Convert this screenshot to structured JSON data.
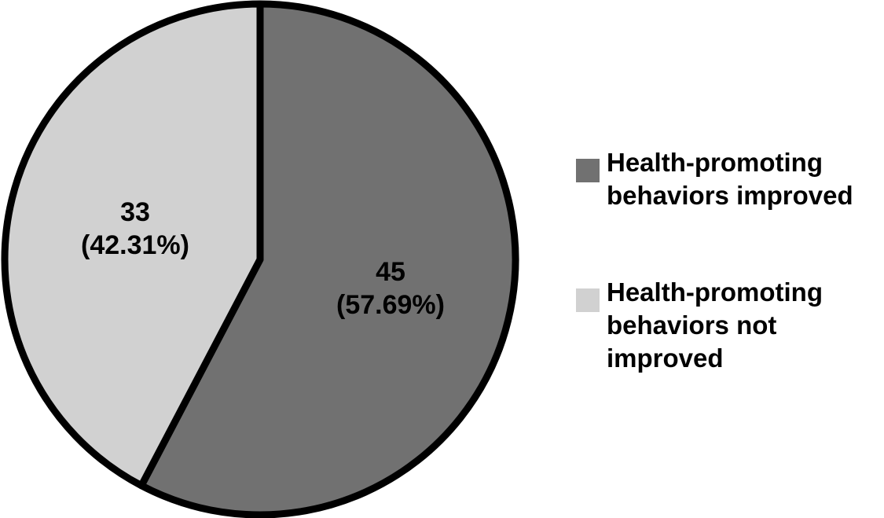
{
  "figure": {
    "background_color": "#ffffff"
  },
  "chart_data": {
    "type": "pie",
    "title": "",
    "total": 78,
    "start_angle_deg": 0,
    "direction": "clockwise",
    "legend_position": "right",
    "grid": false,
    "stroke_color": "#000000",
    "stroke_width": 9,
    "slices": [
      {
        "label": "Health-promoting behaviors improved",
        "value": 45,
        "percent": 57.69,
        "color": "#717171",
        "data_label": "45\n(57.69%)"
      },
      {
        "label": "Health-promoting behaviors not improved",
        "value": 33,
        "percent": 42.31,
        "color": "#d1d1d1",
        "data_label": "33\n(42.31%)"
      }
    ]
  },
  "legend": {
    "items": [
      {
        "swatch_color": "#717171",
        "label": "Health-promoting\nbehaviors improved"
      },
      {
        "swatch_color": "#d1d1d1",
        "label": "Health-promoting\nbehaviors not\nimproved"
      }
    ]
  }
}
